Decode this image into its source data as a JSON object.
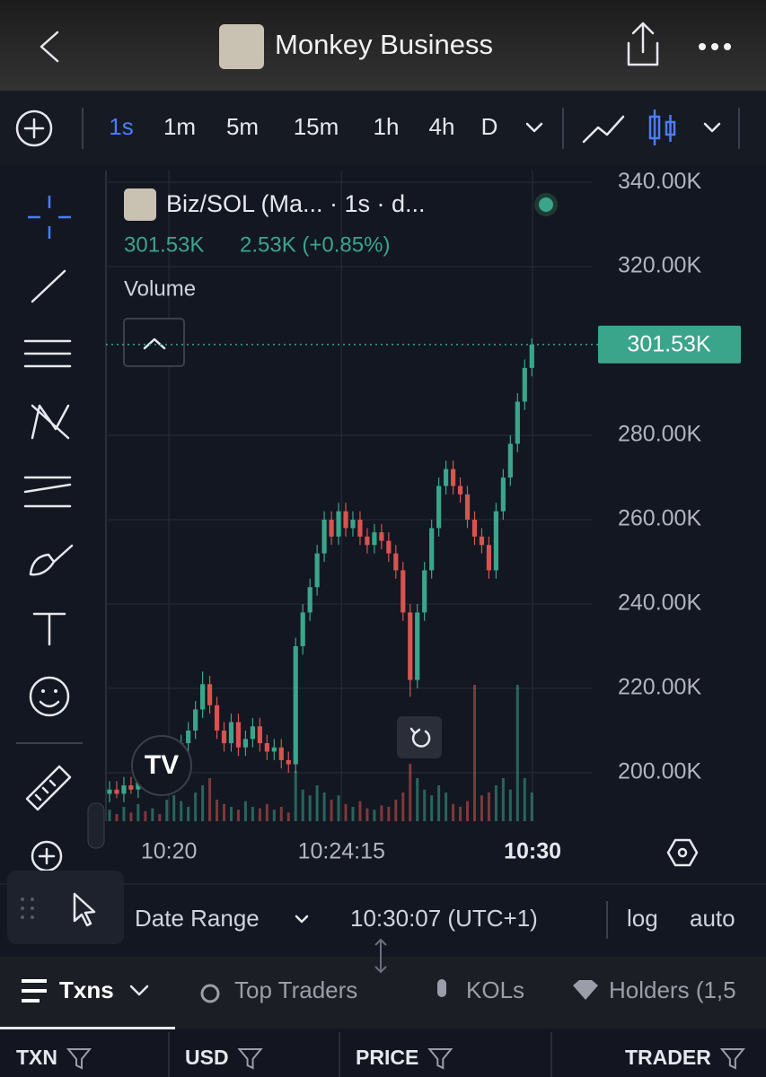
{
  "header": {
    "title": "Monkey Business"
  },
  "toolbar": {
    "intervals": [
      "1s",
      "1m",
      "5m",
      "15m",
      "1h",
      "4h",
      "D"
    ],
    "active_interval": "1s"
  },
  "chart_data": {
    "type": "candlestick",
    "title": "Biz/SOL (Ma... · 1s · d...",
    "change": "2.53K (+0.85%)",
    "volume_label": "Volume",
    "up_color": "#3aa58a",
    "down_color": "#d9534f",
    "open": [
      195,
      196,
      195,
      197,
      196,
      198,
      197,
      199,
      198,
      200,
      203,
      207,
      210,
      215,
      221,
      216,
      210,
      207,
      212,
      206,
      208,
      211,
      207,
      205,
      206,
      203,
      202,
      230,
      238,
      244,
      252,
      260,
      256,
      262,
      258,
      260,
      256,
      254,
      257,
      255,
      252,
      248,
      238,
      222,
      238,
      248,
      258,
      268,
      272,
      268,
      266,
      260,
      256,
      254,
      248,
      262,
      270,
      278,
      288,
      296
    ],
    "high": [
      198,
      198,
      199,
      199,
      200,
      200,
      201,
      201,
      202,
      205,
      209,
      212,
      217,
      224,
      223,
      218,
      212,
      214,
      214,
      210,
      213,
      213,
      209,
      208,
      208,
      205,
      232,
      240,
      246,
      254,
      262,
      262,
      264,
      264,
      262,
      262,
      258,
      259,
      259,
      257,
      254,
      250,
      240,
      240,
      250,
      260,
      270,
      274,
      274,
      270,
      268,
      262,
      258,
      256,
      264,
      272,
      280,
      290,
      298,
      303
    ],
    "low": [
      193,
      194,
      193,
      195,
      194,
      196,
      195,
      197,
      196,
      198,
      201,
      205,
      208,
      213,
      214,
      208,
      205,
      205,
      204,
      204,
      206,
      205,
      203,
      203,
      201,
      200,
      200,
      228,
      236,
      242,
      250,
      254,
      254,
      256,
      256,
      254,
      252,
      252,
      253,
      250,
      246,
      236,
      218,
      220,
      236,
      246,
      256,
      266,
      266,
      264,
      258,
      254,
      252,
      246,
      246,
      260,
      268,
      276,
      286,
      294
    ],
    "close": [
      196,
      195,
      197,
      196,
      198,
      197,
      199,
      198,
      200,
      203,
      207,
      210,
      215,
      221,
      216,
      210,
      207,
      212,
      206,
      208,
      211,
      207,
      205,
      206,
      203,
      202,
      230,
      238,
      244,
      252,
      260,
      256,
      262,
      258,
      260,
      256,
      254,
      257,
      255,
      252,
      248,
      238,
      222,
      238,
      248,
      258,
      268,
      272,
      268,
      266,
      260,
      256,
      254,
      248,
      262,
      270,
      278,
      288,
      296,
      301.53
    ],
    "volume": [
      8,
      5,
      10,
      6,
      12,
      7,
      9,
      5,
      15,
      18,
      14,
      10,
      20,
      25,
      30,
      15,
      12,
      10,
      8,
      14,
      10,
      9,
      12,
      8,
      10,
      6,
      35,
      22,
      18,
      25,
      20,
      15,
      18,
      12,
      10,
      14,
      9,
      8,
      11,
      10,
      15,
      20,
      40,
      30,
      22,
      18,
      25,
      20,
      12,
      10,
      14,
      95,
      18,
      20,
      25,
      30,
      22,
      95,
      30,
      20
    ],
    "volume_lim": [
      0,
      100
    ],
    "price_line": {
      "value": 301.53,
      "label": "301.53K"
    },
    "xlim": [
      -0.5,
      67.5
    ],
    "xticks": [
      {
        "value": 8.3,
        "label": "10:20"
      },
      {
        "value": 32.4,
        "label": "10:24:15"
      },
      {
        "value": 59.1,
        "label": "10:30"
      }
    ],
    "ylim": [
      188.5,
      342.8
    ],
    "yticks": [
      {
        "value": 200,
        "label": "200.00K"
      },
      {
        "value": 220,
        "label": "220.00K"
      },
      {
        "value": 240,
        "label": "240.00K"
      },
      {
        "value": 260,
        "label": "260.00K"
      },
      {
        "value": 280,
        "label": "280.00K"
      },
      {
        "value": 320,
        "label": "320.00K"
      },
      {
        "value": 340,
        "label": "340.00K"
      }
    ],
    "grid": true
  },
  "footer": {
    "date_range": "Date Range",
    "time": "10:30:07 (UTC+1)",
    "log": "log",
    "auto": "auto"
  },
  "tabs": [
    "Txns",
    "Top Traders",
    "KOLs",
    "Holders (1,5"
  ],
  "columns": [
    "TXN",
    "USD",
    "PRICE",
    "TRADER"
  ]
}
